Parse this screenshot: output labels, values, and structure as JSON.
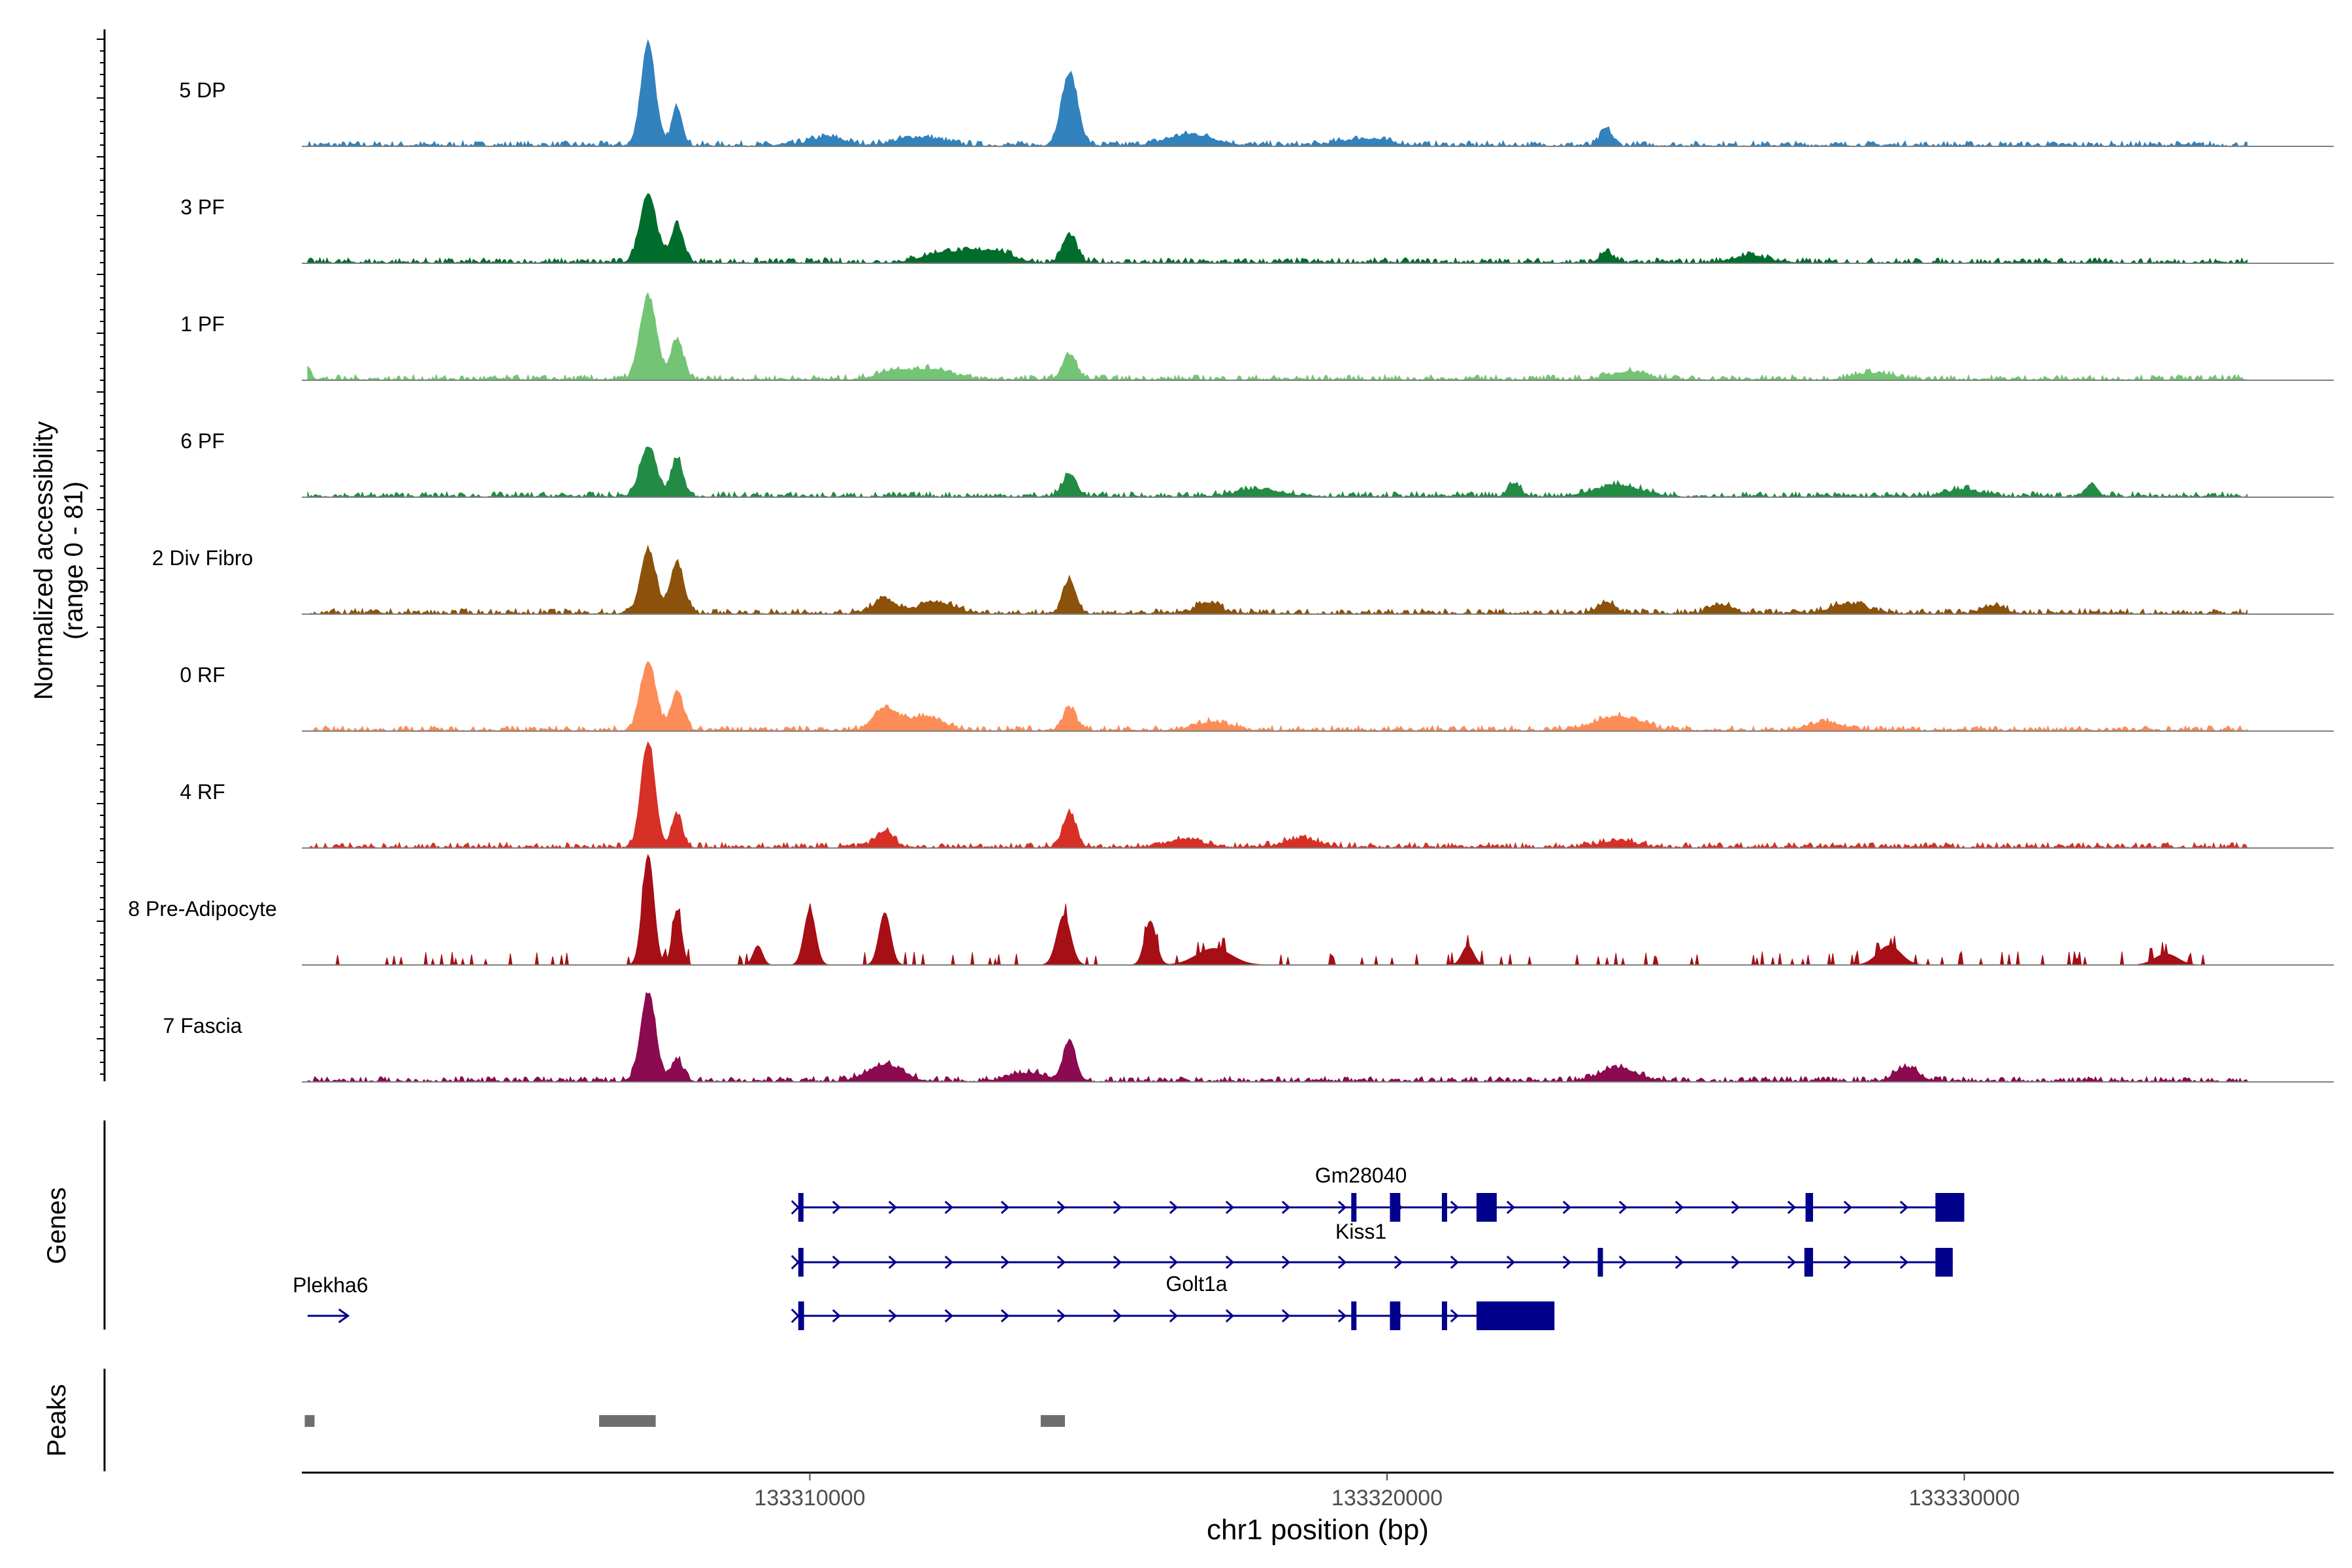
{
  "chart_data": {
    "type": "genome-coverage-track",
    "chromosome": "chr1",
    "region": [
      133301200,
      133336400
    ],
    "y_axis_label_line1": "Normalized accessibility",
    "y_axis_label_line2": "(range 0 - 81)",
    "y_range": [
      0,
      81
    ],
    "x_axis_label": "chr1 position (bp)",
    "x_ticks": [
      133310000,
      133320000,
      133330000
    ],
    "x_tick_labels": [
      "133310000",
      "133320000",
      "133330000"
    ],
    "genes_panel_label": "Genes",
    "peaks_panel_label": "Peaks",
    "tracks": [
      {
        "name": "5 DP",
        "color": "#3182bd",
        "peaks": [
          [
            133307200,
            75,
            120
          ],
          [
            133307700,
            28,
            90
          ],
          [
            133314500,
            52,
            140
          ],
          [
            133319600,
            5,
            400
          ],
          [
            133323800,
            12,
            100
          ],
          [
            133310300,
            6,
            300
          ],
          [
            133311900,
            6,
            400
          ],
          [
            133316600,
            8,
            400
          ]
        ]
      },
      {
        "name": "3 PF",
        "color": "#006d2c",
        "peaks": [
          [
            133307200,
            50,
            140
          ],
          [
            133307700,
            27,
            110
          ],
          [
            133314500,
            20,
            120
          ],
          [
            133312400,
            8,
            400
          ],
          [
            133313200,
            8,
            300
          ],
          [
            133323800,
            8,
            100
          ],
          [
            133326300,
            5,
            300
          ]
        ]
      },
      {
        "name": "1 PF",
        "color": "#74c476",
        "peaks": [
          [
            133307200,
            60,
            140
          ],
          [
            133307700,
            28,
            110
          ],
          [
            133314500,
            18,
            120
          ],
          [
            133301300,
            10,
            60
          ],
          [
            133311500,
            7,
            300
          ],
          [
            133312200,
            7,
            300
          ],
          [
            133324200,
            6,
            300
          ],
          [
            133328400,
            5,
            300
          ]
        ]
      },
      {
        "name": "6 PF",
        "color": "#238b45",
        "peaks": [
          [
            133307200,
            36,
            140
          ],
          [
            133307700,
            28,
            100
          ],
          [
            133314500,
            16,
            120
          ],
          [
            133322200,
            10,
            100
          ],
          [
            133324000,
            8,
            400
          ],
          [
            133332200,
            9,
            100
          ],
          [
            133317800,
            5,
            400
          ],
          [
            133330000,
            5,
            300
          ]
        ]
      },
      {
        "name": "2 Div Fibro",
        "color": "#8c510a",
        "peaks": [
          [
            133307200,
            46,
            130
          ],
          [
            133307700,
            36,
            120
          ],
          [
            133314500,
            24,
            110
          ],
          [
            133311300,
            10,
            200
          ],
          [
            133312200,
            8,
            300
          ],
          [
            133316900,
            8,
            200
          ],
          [
            133323800,
            8,
            150
          ],
          [
            133325800,
            6,
            200
          ],
          [
            133328000,
            7,
            300
          ],
          [
            133330500,
            5,
            200
          ]
        ]
      },
      {
        "name": "0 RF",
        "color": "#fc8d59",
        "peaks": [
          [
            133307200,
            50,
            130
          ],
          [
            133307700,
            27,
            110
          ],
          [
            133314500,
            16,
            110
          ],
          [
            133311300,
            16,
            200
          ],
          [
            133312000,
            10,
            300
          ],
          [
            133324000,
            10,
            400
          ],
          [
            133327600,
            6,
            300
          ],
          [
            133317000,
            6,
            300
          ]
        ]
      },
      {
        "name": "4 RF",
        "color": "#d73027",
        "peaks": [
          [
            133307200,
            76,
            120
          ],
          [
            133307700,
            24,
            90
          ],
          [
            133314500,
            25,
            110
          ],
          [
            133311300,
            12,
            150
          ],
          [
            133316500,
            6,
            300
          ],
          [
            133318500,
            6,
            300
          ],
          [
            133324000,
            5,
            300
          ]
        ]
      },
      {
        "name": "8 Pre-Adipocyte",
        "color": "#a50f15",
        "peaks": [
          [
            133307200,
            80,
            100
          ],
          [
            133307700,
            40,
            80
          ],
          [
            133310000,
            40,
            100
          ],
          [
            133311300,
            38,
            100
          ],
          [
            133314400,
            36,
            120
          ],
          [
            133315900,
            32,
            100
          ],
          [
            133309100,
            14,
            80
          ],
          [
            133317000,
            12,
            300
          ],
          [
            133321400,
            14,
            100
          ],
          [
            133328700,
            14,
            200
          ],
          [
            133333500,
            8,
            200
          ]
        ]
      },
      {
        "name": "7 Fascia",
        "color": "#8b0a50",
        "peaks": [
          [
            133307200,
            64,
            130
          ],
          [
            133307700,
            16,
            100
          ],
          [
            133314500,
            28,
            110
          ],
          [
            133311300,
            12,
            300
          ],
          [
            133313800,
            6,
            300
          ],
          [
            133324000,
            10,
            300
          ],
          [
            133329000,
            10,
            200
          ]
        ]
      }
    ],
    "genes": [
      {
        "name": "Gm28040",
        "row": 0,
        "start": 133309800,
        "end": 133330000,
        "exons": [
          [
            133309800,
            133309880
          ],
          [
            133319380,
            133319460
          ],
          [
            133320050,
            133320230
          ],
          [
            133320950,
            133321010
          ],
          [
            133321550,
            133321900
          ],
          [
            133327250,
            133327380
          ],
          [
            133329500,
            133330000
          ]
        ]
      },
      {
        "name": "Kiss1",
        "row": 1,
        "start": 133309800,
        "end": 133329800,
        "exons": [
          [
            133309800,
            133309880
          ],
          [
            133323650,
            133323730
          ],
          [
            133327230,
            133327380
          ],
          [
            133329500,
            133329800
          ]
        ]
      },
      {
        "name": "Golt1a",
        "row": 2,
        "start": 133309800,
        "end": 133322900,
        "exons": [
          [
            133309800,
            133309900
          ],
          [
            133319380,
            133319460
          ],
          [
            133320050,
            133320230
          ],
          [
            133320950,
            133321010
          ],
          [
            133321550,
            133322900
          ]
        ]
      },
      {
        "name": "Plekha6",
        "row": 2,
        "start": 133301300,
        "end": 133302000,
        "exons": []
      }
    ],
    "peak_regions": [
      [
        133301250,
        133301420
      ],
      [
        133306350,
        133307330
      ],
      [
        133314000,
        133314420
      ]
    ]
  }
}
